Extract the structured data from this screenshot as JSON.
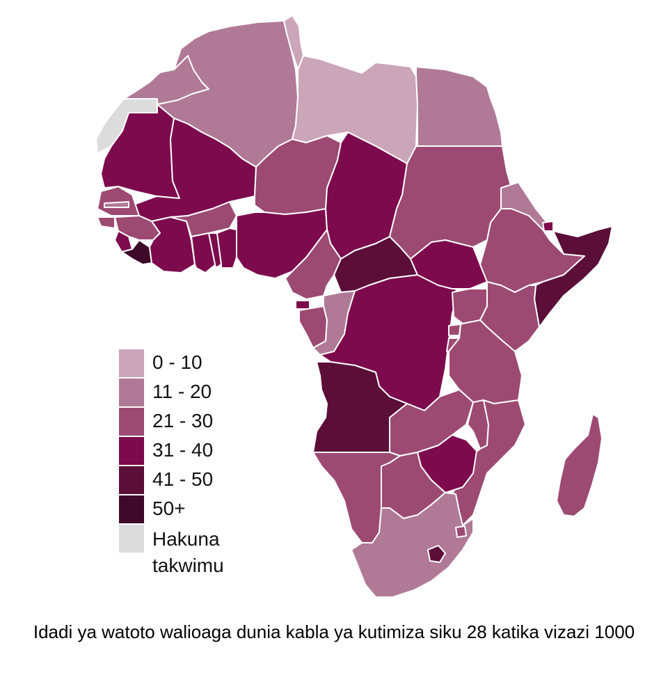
{
  "colors": {
    "b0_10": "#cba5b8",
    "b11_20": "#b07a96",
    "b21_30": "#9c4a72",
    "b31_40": "#7d0a4d",
    "b41_50": "#5a0e38",
    "b50p": "#3d0a29",
    "nodata": "#dcdcdc"
  },
  "legend": {
    "items": [
      {
        "label": "0 - 10",
        "color": "#cba5b8"
      },
      {
        "label": "11 - 20",
        "color": "#b07a96"
      },
      {
        "label": "21 - 30",
        "color": "#9c4a72"
      },
      {
        "label": "31 - 40",
        "color": "#7d0a4d"
      },
      {
        "label": "41 - 50",
        "color": "#5a0e38"
      },
      {
        "label": "50+",
        "color": "#3d0a29"
      },
      {
        "label": "Hakuna takwimu",
        "color": "#dcdcdc"
      }
    ]
  },
  "caption": "Idadi ya watoto walioaga dunia kabla ya kutimiza siku 28 katika vizazi 1000"
}
